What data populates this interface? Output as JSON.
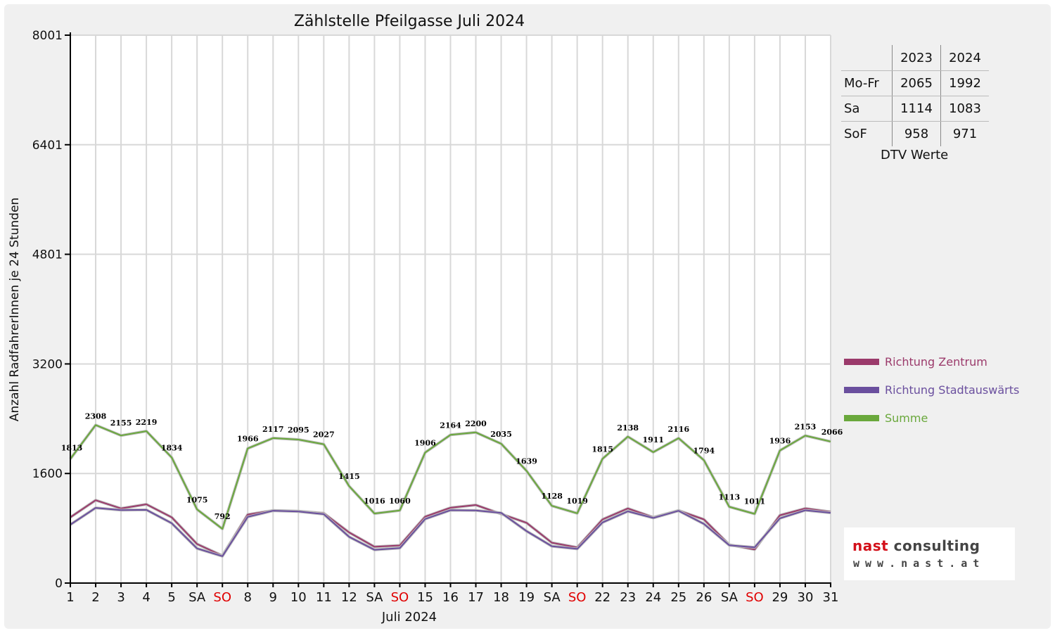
{
  "chart_data": {
    "type": "line",
    "title": "Zählstelle Pfeilgasse Juli 2024",
    "xlabel": "Juli 2024",
    "ylabel": "Anzahl RadfahrerInnen je 24 Stunden",
    "y_ticks": [
      "0",
      "1600",
      "3200",
      "4801",
      "6401",
      "8001"
    ],
    "ylim": [
      0,
      8001
    ],
    "grid": "vertical",
    "categories": [
      "1",
      "2",
      "3",
      "4",
      "5",
      "SA",
      "SO",
      "8",
      "9",
      "10",
      "11",
      "12",
      "SA",
      "SO",
      "15",
      "16",
      "17",
      "18",
      "19",
      "SA",
      "SO",
      "22",
      "23",
      "24",
      "25",
      "26",
      "SA",
      "SO",
      "29",
      "30",
      "31"
    ],
    "weekend_color": "#e00000",
    "series": [
      {
        "name": "Richtung Zentrum",
        "color": "#9b3a6b",
        "values": [
          960,
          1210,
          1090,
          1150,
          960,
          570,
          400,
          1000,
          1060,
          1050,
          1020,
          740,
          530,
          550,
          970,
          1100,
          1140,
          1010,
          880,
          590,
          520,
          930,
          1090,
          960,
          1060,
          930,
          560,
          490,
          990,
          1090,
          1040
        ]
      },
      {
        "name": "Richtung Stadtauswärts",
        "color": "#6a4f9e",
        "values": [
          853,
          1098,
          1065,
          1069,
          874,
          505,
          392,
          966,
          1057,
          1045,
          1007,
          675,
          486,
          510,
          936,
          1064,
          1060,
          1025,
          759,
          538,
          499,
          885,
          1048,
          951,
          1056,
          864,
          553,
          521,
          946,
          1063,
          1026
        ]
      },
      {
        "name": "Summe",
        "color": "#6aa83c",
        "values": [
          1813,
          2308,
          2155,
          2219,
          1834,
          1075,
          792,
          1966,
          2117,
          2095,
          2027,
          1415,
          1016,
          1060,
          1906,
          2164,
          2200,
          2035,
          1639,
          1128,
          1019,
          1815,
          2138,
          1911,
          2116,
          1794,
          1113,
          1011,
          1936,
          2153,
          2066
        ]
      }
    ],
    "data_labels": [
      "1813",
      "2308",
      "2155",
      "2219",
      "1834",
      "1075",
      "792",
      "1966",
      "2117",
      "2095",
      "2027",
      "1415",
      "1016",
      "1060",
      "1906",
      "2164",
      "2200",
      "2035",
      "1639",
      "1128",
      "1019",
      "1815",
      "2138",
      "1911",
      "2116",
      "1794",
      "1113",
      "1011",
      "1936",
      "2153",
      "2066"
    ]
  },
  "dtv_table": {
    "header": [
      "",
      "2023",
      "2024"
    ],
    "rows": [
      {
        "label": "Mo-Fr",
        "v2023": "2065",
        "v2024": "1992"
      },
      {
        "label": "Sa",
        "v2023": "1114",
        "v2024": "1083"
      },
      {
        "label": "SoF",
        "v2023": "958",
        "v2024": "971"
      }
    ],
    "caption": "DTV Werte"
  },
  "legend": [
    {
      "label": "Richtung Zentrum",
      "color": "#9b3a6b"
    },
    {
      "label": "Richtung Stadtauswärts",
      "color": "#6a4f9e"
    },
    {
      "label": "Summe",
      "color": "#6aa83c"
    }
  ],
  "logo": {
    "name_part1": "nast",
    "name_part2": "consulting",
    "url": "www.nast.at"
  }
}
